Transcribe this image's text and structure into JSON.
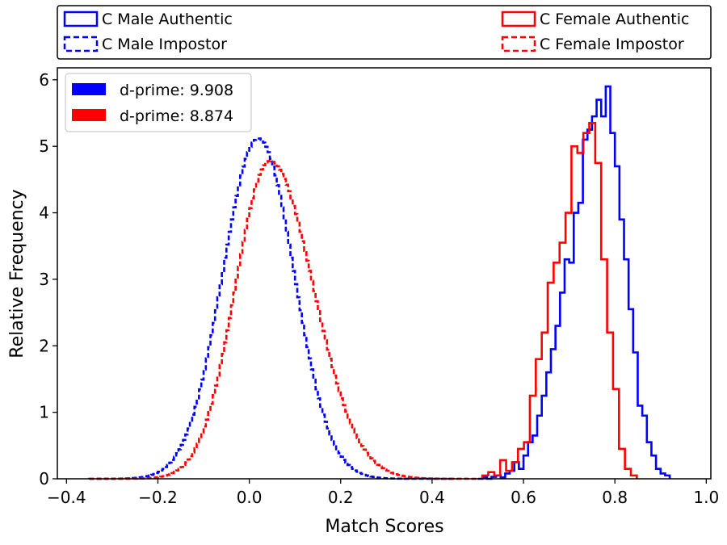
{
  "chart_data": {
    "type": "histogram-step",
    "title": "",
    "xlabel": "Match Scores",
    "ylabel": "Relative Frequency",
    "xlim": [
      -0.42,
      1.01
    ],
    "ylim": [
      0,
      6.18
    ],
    "xticks": [
      -0.4,
      -0.2,
      0.0,
      0.2,
      0.4,
      0.6,
      0.8,
      1.0
    ],
    "xtick_labels": [
      "−0.4",
      "−0.2",
      "0.0",
      "0.2",
      "0.4",
      "0.6",
      "0.8",
      "1.0"
    ],
    "yticks": [
      0,
      1,
      2,
      3,
      4,
      5,
      6
    ],
    "ytick_labels": [
      "0",
      "1",
      "2",
      "3",
      "4",
      "5",
      "6"
    ],
    "top_legend": {
      "placement": "above plot",
      "entries": [
        {
          "label": "C Male Authentic",
          "color": "#0000ff",
          "style": "solid"
        },
        {
          "label": "C Male Impostor",
          "color": "#0000ff",
          "style": "dashed"
        },
        {
          "label": "C Female Authentic",
          "color": "#ff0000",
          "style": "solid"
        },
        {
          "label": "C Female Impostor",
          "color": "#ff0000",
          "style": "dashed"
        }
      ]
    },
    "inner_legend": {
      "placement": "upper-left",
      "entries": [
        {
          "label": "d-prime: 9.908",
          "color": "#0000ff"
        },
        {
          "label": "d-prime: 8.874",
          "color": "#ff0000"
        }
      ]
    },
    "series": [
      {
        "name": "C Male Impostor",
        "color": "#0000ff",
        "style": "dashed",
        "distribution": {
          "kind": "skewed-normal",
          "center": 0.02,
          "sigma_left": 0.078,
          "sigma_right": 0.078,
          "peak": 5.12,
          "start": -0.35,
          "end": 0.45,
          "bin": 0.005
        }
      },
      {
        "name": "C Female Impostor",
        "color": "#ff0000",
        "style": "dashed",
        "distribution": {
          "kind": "skewed-normal",
          "center": 0.045,
          "sigma_left": 0.075,
          "sigma_right": 0.095,
          "peak": 4.78,
          "start": -0.35,
          "end": 0.5,
          "bin": 0.005
        }
      },
      {
        "name": "C Male Authentic",
        "color": "#0000ff",
        "style": "solid",
        "x_start": 0.5,
        "bin_width": 0.01,
        "values": [
          0.0,
          0.02,
          0.0,
          0.03,
          0.05,
          0.02,
          0.08,
          0.12,
          0.25,
          0.15,
          0.35,
          0.55,
          0.65,
          0.95,
          1.25,
          1.6,
          1.95,
          2.3,
          2.8,
          3.3,
          3.25,
          4.0,
          4.15,
          5.1,
          5.25,
          5.45,
          5.7,
          5.45,
          5.9,
          5.2,
          4.7,
          3.9,
          3.3,
          2.55,
          1.9,
          1.1,
          0.95,
          0.55,
          0.35,
          0.15,
          0.08,
          0.05
        ]
      },
      {
        "name": "C Female Authentic",
        "color": "#ff0000",
        "style": "solid",
        "x_start": 0.51,
        "bin_width": 0.013,
        "values": [
          0.05,
          0.1,
          0.05,
          0.28,
          0.12,
          0.25,
          0.45,
          0.55,
          1.25,
          1.8,
          2.2,
          2.95,
          3.25,
          3.55,
          4.0,
          5.0,
          4.9,
          5.2,
          5.35,
          4.75,
          3.3,
          2.2,
          1.35,
          0.45,
          0.15,
          0.05
        ]
      }
    ]
  }
}
